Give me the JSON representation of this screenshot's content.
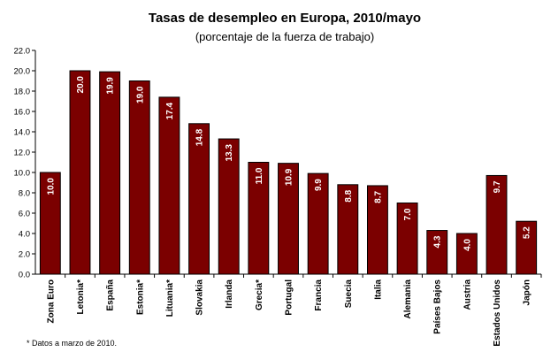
{
  "chart_data": {
    "type": "bar",
    "title": "Tasas de desempleo en Europa, 2010/mayo",
    "subtitle": "(porcentaje de la fuerza de trabajo)",
    "categories": [
      "Zona Euro",
      "Letonia*",
      "España",
      "Estonia*",
      "Lituania*",
      "Slovakia",
      "Irlanda",
      "Grecia*",
      "Portugal",
      "Francia",
      "Suecia",
      "Italia",
      "Alemania",
      "Países Bajos",
      "Austria",
      "Estados Unidos",
      "Japón"
    ],
    "values": [
      10.0,
      20.0,
      19.9,
      19.0,
      17.4,
      14.8,
      13.3,
      11.0,
      10.9,
      9.9,
      8.8,
      8.7,
      7.0,
      4.3,
      4.0,
      9.7,
      5.2
    ],
    "value_labels": [
      "10.0",
      "20.0",
      "19.9",
      "19.0",
      "17.4",
      "14.8",
      "13.3",
      "11.0",
      "10.9",
      "9.9",
      "8.8",
      "8.7",
      "7.0",
      "4.3",
      "4.0",
      "9.7",
      "5.2"
    ],
    "ylim": [
      0,
      22
    ],
    "yticks": [
      "0.0",
      "2.0",
      "4.0",
      "6.0",
      "8.0",
      "10.0",
      "12.0",
      "14.0",
      "16.0",
      "18.0",
      "20.0",
      "22.0"
    ],
    "grid": false,
    "bar_color": "#7b0000",
    "footnote": "* Datos a marzo de 2010."
  }
}
